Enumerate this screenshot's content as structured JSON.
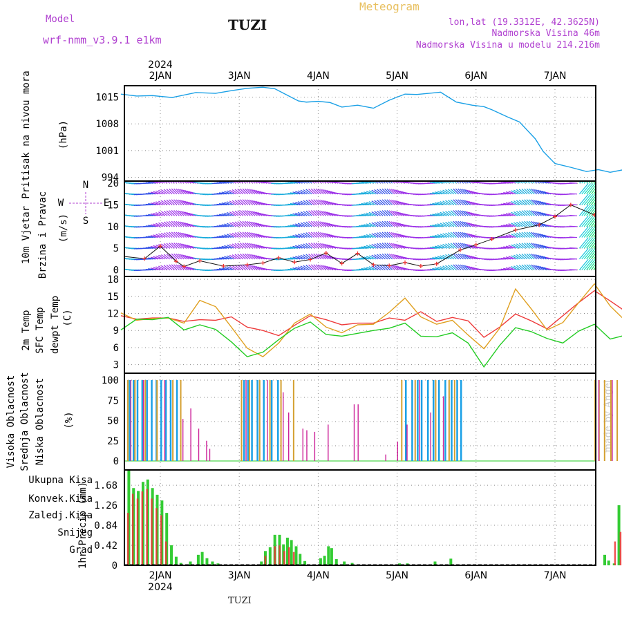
{
  "header": {
    "model_label": "Model",
    "model_name": "wrf-nmm_v3.9.1  e1km",
    "station": "TUZI",
    "title": "Meteogram",
    "coords": "lon,lat (19.3312E, 42.3625N)",
    "elevation": "Nadmorska Visina 46m",
    "model_elevation": "Nadmorska Visina u modelu 214.216m",
    "footer_station": "TUZI",
    "watermark": "made by Angel"
  },
  "colors": {
    "pressure": "#1aa0e6",
    "t2m": "#ee3a3a",
    "tsfc": "#e0a020",
    "dewpt": "#22cc22",
    "cloud_high": "#1aa0e6",
    "cloud_mid": "#d4a030",
    "cloud_low": "#cc2299",
    "precip_total": "#33cc33",
    "precip_conv": "#ee3333",
    "precip_frz": "#ff7733",
    "precip_snow": "#4444dd",
    "precip_hail": "#22cccc",
    "purple_text": "#b040d0",
    "title_gold": "#e8c060"
  },
  "time_axis": {
    "top_year": "2024",
    "bottom_year": "2024",
    "days": [
      "2JAN",
      "3JAN",
      "4JAN",
      "5JAN",
      "6JAN",
      "7JAN"
    ]
  },
  "chart_data": [
    {
      "type": "line",
      "name": "pressure",
      "ylabel_lines": [
        "Pritisak na nivou mora",
        "(hPa)"
      ],
      "yticks": [
        994,
        1001,
        1008,
        1015
      ],
      "ylim": [
        993,
        1018
      ],
      "x": [
        -0.5,
        -0.3,
        -0.1,
        0.15,
        0.45,
        0.7,
        0.9,
        1.1,
        1.3,
        1.45,
        1.6,
        1.75,
        1.85,
        2.0,
        2.15,
        2.3,
        2.5,
        2.7,
        2.9,
        3.1,
        3.25,
        3.4,
        3.55,
        3.75,
        3.95,
        4.1,
        4.2,
        4.4,
        4.55,
        4.75,
        4.85,
        5.0,
        5.2,
        5.4,
        5.55,
        5.7,
        5.85,
        6.0,
        6.1,
        6.2,
        6.35,
        6.5,
        6.6
      ],
      "values": [
        1015.8,
        1015.3,
        1015.4,
        1014.9,
        1016.2,
        1016.0,
        1016.7,
        1017.3,
        1017.6,
        1017.2,
        1015.6,
        1014.0,
        1013.7,
        1013.9,
        1013.6,
        1012.4,
        1012.9,
        1012.1,
        1014.2,
        1015.8,
        1015.7,
        1016.0,
        1016.3,
        1013.7,
        1012.9,
        1012.5,
        1011.7,
        1009.8,
        1008.5,
        1004.1,
        1000.8,
        997.6,
        996.6,
        995.5,
        996.0,
        995.3,
        995.9,
        996.3,
        996.2,
        995.8,
        996.6,
        996.2,
        996.3
      ]
    },
    {
      "type": "scatter",
      "name": "wind",
      "ylabel_lines": [
        "10m Vjetar",
        "Brzina i Pravac",
        "(m/s)"
      ],
      "compass": [
        "N",
        "W",
        "E",
        "S"
      ],
      "yticks": [
        0,
        5,
        10,
        15,
        20
      ],
      "ylim": [
        -1.5,
        20.5
      ],
      "speed_x": [
        -0.5,
        -0.2,
        0.0,
        0.2,
        0.3,
        0.5,
        0.8,
        1.1,
        1.3,
        1.5,
        1.7,
        1.9,
        2.1,
        2.3,
        2.5,
        2.7,
        2.9,
        3.1,
        3.3,
        3.5,
        3.8,
        4.0,
        4.2,
        4.5,
        4.8,
        5.0,
        5.2,
        5.5,
        5.8,
        6.0,
        6.2,
        6.4,
        6.6
      ],
      "speed_values": [
        3.2,
        2.6,
        5.5,
        2.0,
        0.8,
        2.1,
        0.9,
        1.2,
        1.6,
        2.8,
        1.8,
        2.4,
        3.9,
        1.5,
        3.8,
        1.2,
        1.0,
        1.7,
        0.9,
        1.4,
        4.6,
        5.8,
        7.1,
        9.2,
        10.4,
        12.3,
        15.0,
        12.7,
        10.8,
        9.5,
        11.3,
        10.4,
        11.5
      ]
    },
    {
      "type": "line",
      "name": "temperature",
      "ylabel_lines": [
        "2m Temp",
        "SFC Temp",
        "dewpt Temp",
        "(C)"
      ],
      "yticks": [
        3,
        6,
        9,
        12,
        15,
        18
      ],
      "ylim": [
        1.5,
        18.5
      ],
      "series": [
        {
          "name": "2m Temp",
          "x": [
            -0.5,
            -0.3,
            -0.1,
            0.1,
            0.3,
            0.5,
            0.7,
            0.9,
            1.1,
            1.3,
            1.5,
            1.7,
            1.9,
            2.1,
            2.3,
            2.5,
            2.7,
            2.9,
            3.1,
            3.3,
            3.5,
            3.7,
            3.9,
            4.1,
            4.3,
            4.5,
            4.7,
            4.9,
            5.1,
            5.3,
            5.5,
            5.7,
            5.9,
            6.1,
            6.3,
            6.5,
            6.6
          ],
          "values": [
            11.6,
            11.0,
            11.2,
            11.2,
            10.6,
            10.9,
            10.8,
            11.4,
            9.6,
            9.0,
            8.1,
            9.9,
            11.6,
            10.9,
            10.0,
            10.3,
            10.3,
            11.2,
            10.8,
            12.3,
            10.6,
            11.3,
            10.7,
            7.8,
            9.6,
            11.9,
            10.7,
            9.3,
            11.6,
            13.9,
            16.0,
            14.2,
            12.3,
            11.2,
            9.6,
            9.4,
            10.5
          ]
        },
        {
          "name": "SFC Temp",
          "x": [
            -0.5,
            -0.3,
            -0.1,
            0.1,
            0.3,
            0.5,
            0.7,
            0.9,
            1.1,
            1.3,
            1.5,
            1.7,
            1.9,
            2.1,
            2.3,
            2.5,
            2.7,
            2.9,
            3.1,
            3.3,
            3.5,
            3.7,
            3.9,
            4.1,
            4.3,
            4.5,
            4.7,
            4.9,
            5.1,
            5.3,
            5.5,
            5.7,
            5.9,
            6.1,
            6.3,
            6.5,
            6.6
          ],
          "values": [
            12.1,
            10.8,
            11.1,
            11.2,
            10.3,
            14.3,
            13.2,
            9.6,
            5.9,
            4.4,
            6.8,
            10.3,
            11.9,
            9.6,
            8.6,
            10.0,
            10.1,
            12.2,
            14.7,
            11.4,
            10.1,
            10.8,
            8.2,
            5.8,
            9.4,
            16.3,
            12.8,
            9.1,
            10.4,
            13.9,
            17.2,
            13.3,
            10.6,
            9.8,
            9.4,
            9.8,
            10.4
          ]
        },
        {
          "name": "dewpt Temp",
          "x": [
            -0.5,
            -0.3,
            -0.1,
            0.1,
            0.3,
            0.5,
            0.7,
            0.9,
            1.1,
            1.3,
            1.5,
            1.7,
            1.9,
            2.1,
            2.3,
            2.5,
            2.7,
            2.9,
            3.1,
            3.3,
            3.5,
            3.7,
            3.9,
            4.1,
            4.3,
            4.5,
            4.7,
            4.9,
            5.1,
            5.3,
            5.5,
            5.7,
            5.9,
            6.1,
            6.3,
            6.5,
            6.6
          ],
          "values": [
            9.1,
            11.0,
            10.9,
            11.3,
            9.1,
            10.0,
            9.2,
            7.0,
            4.4,
            5.2,
            7.4,
            9.4,
            10.5,
            8.3,
            8.0,
            8.5,
            9.0,
            9.4,
            10.3,
            8.0,
            7.9,
            8.6,
            6.8,
            2.6,
            6.4,
            9.5,
            8.8,
            7.6,
            6.8,
            8.9,
            10.1,
            7.5,
            8.2,
            6.5,
            8.1,
            8.9,
            8.3
          ]
        }
      ]
    },
    {
      "type": "bar",
      "name": "clouds",
      "ylabel_lines": [
        "Visoka Oblacnost",
        "Srednja Oblacnost",
        "Niska Oblacnost",
        "(%)"
      ],
      "yticks": [
        0,
        25,
        50,
        75,
        100
      ],
      "ylim": [
        0,
        100
      ],
      "series": [
        {
          "name": "Visoka Oblacnost",
          "x": [
            -0.4,
            -0.35,
            -0.3,
            -0.24,
            -0.18,
            -0.12,
            -0.06,
            0.0,
            0.06,
            0.12,
            0.2,
            1.05,
            1.1,
            1.15,
            1.22,
            1.3,
            1.4,
            1.48,
            3.1,
            3.18,
            3.25,
            3.3,
            3.38,
            3.45,
            3.52,
            3.6,
            3.68,
            3.75,
            3.8,
            6.5,
            6.6
          ],
          "values": [
            100,
            100,
            100,
            100,
            100,
            100,
            100,
            100,
            100,
            100,
            100,
            100,
            100,
            100,
            100,
            100,
            100,
            100,
            100,
            100,
            100,
            100,
            100,
            100,
            100,
            100,
            100,
            100,
            100,
            28,
            12
          ]
        },
        {
          "name": "Srednja Oblacnost",
          "x": [
            -0.42,
            -0.33,
            -0.2,
            -0.05,
            0.15,
            0.25,
            1.02,
            1.12,
            1.25,
            1.38,
            1.52,
            1.68,
            3.05,
            3.22,
            3.48,
            3.65,
            3.72,
            5.5,
            5.55,
            5.62,
            5.7,
            5.78,
            5.85,
            5.92,
            6.0,
            6.08,
            6.15,
            6.22,
            6.3,
            6.38,
            6.45,
            6.52,
            6.58
          ],
          "values": [
            100,
            100,
            100,
            100,
            100,
            100,
            100,
            100,
            100,
            100,
            100,
            100,
            100,
            100,
            100,
            100,
            100,
            100,
            100,
            100,
            100,
            100,
            100,
            100,
            100,
            100,
            100,
            100,
            100,
            100,
            100,
            100,
            100
          ]
        },
        {
          "name": "Niska Oblacnost",
          "x": [
            -0.38,
            -0.22,
            0.05,
            0.28,
            0.38,
            0.48,
            0.58,
            0.62,
            1.08,
            1.35,
            1.55,
            1.62,
            1.8,
            1.85,
            1.95,
            2.12,
            2.45,
            2.5,
            2.85,
            3.0,
            3.12,
            3.28,
            3.42,
            3.58,
            5.55,
            5.72,
            5.88,
            6.05,
            6.25,
            6.42,
            6.55
          ],
          "values": [
            100,
            100,
            100,
            52,
            65,
            40,
            25,
            15,
            100,
            100,
            85,
            60,
            40,
            38,
            36,
            45,
            70,
            70,
            8,
            24,
            45,
            100,
            60,
            80,
            100,
            100,
            100,
            100,
            100,
            100,
            100
          ]
        }
      ]
    },
    {
      "type": "bar",
      "name": "precipitation",
      "ylabel_lines": [
        "1hr Precip (mm)"
      ],
      "legend": [
        "Ukupna Kisa",
        "Konvek.Kisa",
        "Zaledj.Kisa",
        "Snijeg",
        "Grad"
      ],
      "yticks": [
        0,
        0.42,
        0.84,
        1.26,
        1.68
      ],
      "ylim": [
        0,
        2.0
      ],
      "series": [
        {
          "name": "Ukupna Kisa",
          "x": [
            -0.43,
            -0.37,
            -0.31,
            -0.25,
            -0.19,
            -0.13,
            -0.07,
            -0.01,
            0.05,
            0.11,
            0.17,
            0.23,
            0.35,
            0.45,
            0.5,
            0.56,
            0.63,
            0.7,
            1.25,
            1.3,
            1.36,
            1.42,
            1.48,
            1.53,
            1.58,
            1.63,
            1.69,
            1.74,
            1.8,
            2.0,
            2.05,
            2.1,
            2.14,
            2.2,
            2.3,
            2.4,
            3.0,
            3.1,
            3.45,
            3.65,
            5.6,
            5.65,
            5.72,
            5.78,
            5.85,
            5.9,
            5.95,
            6.0,
            6.05,
            6.1
          ],
          "values": [
            2.0,
            1.62,
            1.56,
            1.75,
            1.8,
            1.62,
            1.48,
            1.36,
            1.1,
            0.42,
            0.18,
            0.05,
            0.08,
            0.22,
            0.28,
            0.15,
            0.08,
            0.04,
            0.08,
            0.3,
            0.38,
            0.64,
            0.64,
            0.44,
            0.58,
            0.53,
            0.4,
            0.24,
            0.09,
            0.15,
            0.2,
            0.4,
            0.36,
            0.13,
            0.08,
            0.05,
            0.04,
            0.04,
            0.08,
            0.14,
            0.22,
            0.1,
            0.04,
            1.26,
            0.76,
            0.16,
            0.52,
            1.26,
            1.5,
            1.72
          ]
        },
        {
          "name": "Konvek.Kisa",
          "x": [
            -0.42,
            -0.36,
            -0.3,
            -0.24,
            -0.18,
            -0.12,
            -0.06,
            0.0,
            0.06,
            1.32,
            1.44,
            1.5,
            1.56,
            1.62,
            1.68,
            5.75,
            5.82,
            5.92,
            5.98,
            6.05,
            6.12
          ],
          "values": [
            1.1,
            1.5,
            1.4,
            1.55,
            1.6,
            1.4,
            1.2,
            1.05,
            0.5,
            0.2,
            0.4,
            0.42,
            0.3,
            0.38,
            0.28,
            0.5,
            0.7,
            0.3,
            0.9,
            1.1,
            1.3
          ]
        }
      ]
    }
  ]
}
